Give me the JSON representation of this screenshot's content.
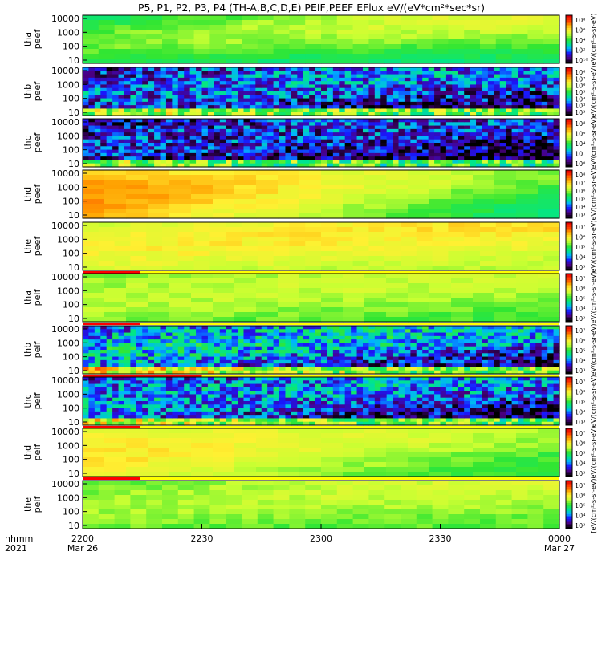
{
  "title": "P5, P1, P2, P3, P4 (TH-A,B,C,D,E) PEIF,PEEF EFlux eV/(eV*cm²*sec*sr)",
  "colors": {
    "background": "#ffffff",
    "axis": "#000000",
    "flag_red": "#ff0000",
    "flag_yellow": "#ffff00",
    "colormap": [
      "#000000",
      "#4b0082",
      "#1818ff",
      "#00b4ff",
      "#00e68a",
      "#32e632",
      "#c8ff32",
      "#fff032",
      "#ffa000",
      "#ff3c00",
      "#e60000"
    ]
  },
  "x_axis": {
    "row_label_top": "hhmm",
    "row_label_bottom": "2021",
    "ticks": [
      {
        "label": "2200",
        "sublabel": "Mar 26"
      },
      {
        "label": "2230",
        "sublabel": ""
      },
      {
        "label": "2300",
        "sublabel": ""
      },
      {
        "label": "2330",
        "sublabel": ""
      },
      {
        "label": "0000",
        "sublabel": "Mar 27"
      }
    ]
  },
  "colorbar_unit": "eV/(cm²-s-sr-eV)",
  "colorbar_unit_bottom": "[eV/(cm²-s-sr-eV)]",
  "chart_data": [
    {
      "type": "heatmap",
      "probe": "tha",
      "ylabel": [
        "tha",
        "peef"
      ],
      "yticks": [
        "10000",
        "1000",
        "100",
        "10"
      ],
      "cbar_ticks": [
        "10⁸",
        "10⁶",
        "10⁴",
        "10²",
        "10¹⁰"
      ],
      "pattern": "smooth",
      "base": 5.5,
      "amp": 1.6,
      "trend": 1.2
    },
    {
      "type": "heatmap",
      "probe": "thb",
      "ylabel": [
        "thb",
        "peef"
      ],
      "yticks": [
        "10000",
        "1000",
        "100",
        "10"
      ],
      "cbar_ticks": [
        "10⁸",
        "10⁷",
        "10⁶",
        "10⁵",
        "10⁴",
        "10³",
        "10²"
      ],
      "pattern": "noisy_low",
      "base": 2.5,
      "amp": 1.5,
      "trend": 0.5
    },
    {
      "type": "heatmap",
      "probe": "thc",
      "ylabel": [
        "thc",
        "peef"
      ],
      "yticks": [
        "10000",
        "1000",
        "100",
        "10"
      ],
      "cbar_ticks": [
        "10⁸",
        "10⁶",
        "10⁴",
        "10⁲",
        "10⁰"
      ],
      "pattern": "noisy_low",
      "base": 2.0,
      "amp": 1.4,
      "trend": 0.2
    },
    {
      "type": "heatmap",
      "probe": "thd",
      "ylabel": [
        "thd",
        "peef"
      ],
      "yticks": [
        "10000",
        "1000",
        "100",
        "10"
      ],
      "cbar_ticks": [
        "10⁸",
        "10⁷",
        "10⁶",
        "10⁵",
        "10⁴",
        "10³"
      ],
      "pattern": "blocky",
      "base": 6.5,
      "amp": 1.0,
      "trend": -2.5
    },
    {
      "type": "heatmap",
      "probe": "the",
      "ylabel": [
        "the",
        "peef"
      ],
      "yticks": [
        "10000",
        "1000",
        "100",
        "10"
      ],
      "cbar_ticks": [
        "10⁷",
        "10⁶",
        "10⁵",
        "10⁴",
        "10³"
      ],
      "pattern": "smooth",
      "base": 6.8,
      "amp": 0.9,
      "trend": 0.4
    },
    {
      "type": "heatmap",
      "probe": "tha",
      "ylabel": [
        "tha",
        "peif"
      ],
      "yticks": [
        "10000",
        "1000",
        "100",
        "10"
      ],
      "cbar_ticks": [
        "10⁷",
        "10⁶",
        "10⁵",
        "10⁴",
        "10³"
      ],
      "pattern": "blocky",
      "base": 6.0,
      "amp": 0.8,
      "trend": 0.2
    },
    {
      "type": "heatmap",
      "probe": "thb",
      "ylabel": [
        "thb",
        "peif"
      ],
      "yticks": [
        "10000",
        "1000",
        "100",
        "10"
      ],
      "cbar_ticks": [
        "10⁷",
        "10⁶",
        "10⁵",
        "10⁴",
        "10³"
      ],
      "pattern": "noisy_low",
      "base": 3.0,
      "amp": 2.0,
      "trend": 0.0
    },
    {
      "type": "heatmap",
      "probe": "thc",
      "ylabel": [
        "thc",
        "peif"
      ],
      "yticks": [
        "10000",
        "1000",
        "100",
        "10"
      ],
      "cbar_ticks": [
        "10⁷",
        "10⁶",
        "10⁵",
        "10⁴",
        "10³"
      ],
      "pattern": "noisy_low",
      "base": 2.6,
      "amp": 1.8,
      "trend": 0.0
    },
    {
      "type": "heatmap",
      "probe": "thd",
      "ylabel": [
        "thd",
        "peif"
      ],
      "yticks": [
        "10000",
        "1000",
        "100",
        "10"
      ],
      "cbar_ticks": [
        "10⁷",
        "10⁶",
        "10⁵",
        "10⁴",
        "10³"
      ],
      "pattern": "blocky",
      "base": 6.3,
      "amp": 0.9,
      "trend": -1.2
    },
    {
      "type": "heatmap",
      "probe": "the",
      "ylabel": [
        "the",
        "peif"
      ],
      "yticks": [
        "10000",
        "1000",
        "100",
        "10"
      ],
      "cbar_ticks": [
        "10⁷",
        "10⁶",
        "10⁵",
        "10⁴",
        "10³"
      ],
      "pattern": "smooth",
      "base": 6.0,
      "amp": 0.8,
      "trend": 0.6
    }
  ]
}
